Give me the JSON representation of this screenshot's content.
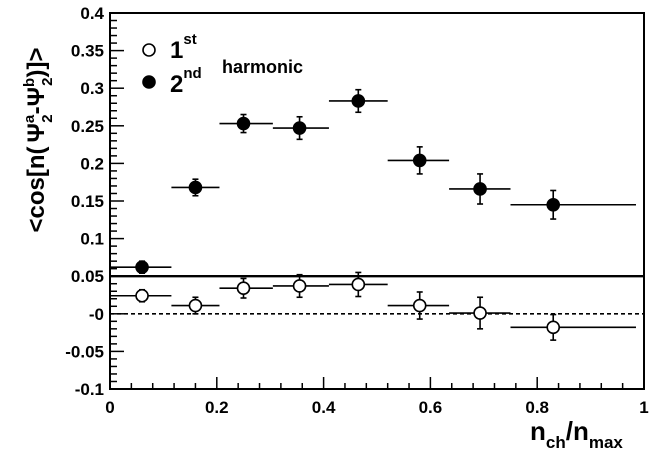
{
  "chart_data": {
    "type": "scatter",
    "xlim": [
      0,
      1.0
    ],
    "ylim": [
      -0.1,
      0.4
    ],
    "x_ticks": [
      0,
      0.2,
      0.4,
      0.6,
      0.8,
      1
    ],
    "x_tick_labels": [
      "0",
      "0.2",
      "0.4",
      "0.6",
      "0.8",
      "1"
    ],
    "y_ticks": [
      -0.1,
      -0.05,
      0,
      0.05,
      0.1,
      0.15,
      0.2,
      0.25,
      0.3,
      0.35,
      0.4
    ],
    "y_tick_labels": [
      "-0.1",
      "-0.05",
      "-0",
      "0.05",
      "0.1",
      "0.15",
      "0.2",
      "0.25",
      "0.3",
      "0.35",
      "0.4"
    ],
    "xlabel": {
      "base": "n",
      "sub": "ch",
      "slash": "/n",
      "sub2": "max"
    },
    "ylabel": {
      "p1": "<cos[n(",
      "psi": "Ψ",
      "sup_a": "a",
      "sub_2a": "2",
      "minus": "-",
      "sup_b": "b",
      "sub_2b": "2",
      "p2": ")]>"
    },
    "legend": {
      "position": "top-left",
      "entries": [
        {
          "ordinal": "1",
          "suffix": "st",
          "marker": "open-circle"
        },
        {
          "ordinal": "2",
          "suffix": "nd",
          "marker": "filled-circle"
        }
      ],
      "label": "harmonic"
    },
    "reference_lines": [
      {
        "y": 0.05,
        "style": "solid"
      },
      {
        "y": 0.0,
        "style": "dashed"
      }
    ],
    "series": [
      {
        "marker": "filled-circle",
        "points": [
          {
            "x": 0.06,
            "y": 0.062,
            "xlo": 0.0,
            "xhi": 0.115,
            "yerr": 0.008
          },
          {
            "x": 0.16,
            "y": 0.168,
            "xlo": 0.115,
            "xhi": 0.205,
            "yerr": 0.011
          },
          {
            "x": 0.25,
            "y": 0.253,
            "xlo": 0.205,
            "xhi": 0.305,
            "yerr": 0.012
          },
          {
            "x": 0.355,
            "y": 0.247,
            "xlo": 0.305,
            "xhi": 0.41,
            "yerr": 0.015
          },
          {
            "x": 0.465,
            "y": 0.283,
            "xlo": 0.41,
            "xhi": 0.52,
            "yerr": 0.015
          },
          {
            "x": 0.58,
            "y": 0.204,
            "xlo": 0.52,
            "xhi": 0.635,
            "yerr": 0.018
          },
          {
            "x": 0.693,
            "y": 0.166,
            "xlo": 0.635,
            "xhi": 0.75,
            "yerr": 0.02
          },
          {
            "x": 0.83,
            "y": 0.145,
            "xlo": 0.75,
            "xhi": 0.985,
            "yerr": 0.019
          }
        ]
      },
      {
        "marker": "open-circle",
        "points": [
          {
            "x": 0.06,
            "y": 0.024,
            "xlo": 0.0,
            "xhi": 0.115,
            "yerr": 0.008
          },
          {
            "x": 0.16,
            "y": 0.011,
            "xlo": 0.115,
            "xhi": 0.205,
            "yerr": 0.011
          },
          {
            "x": 0.25,
            "y": 0.034,
            "xlo": 0.205,
            "xhi": 0.305,
            "yerr": 0.013
          },
          {
            "x": 0.355,
            "y": 0.037,
            "xlo": 0.305,
            "xhi": 0.41,
            "yerr": 0.015
          },
          {
            "x": 0.465,
            "y": 0.039,
            "xlo": 0.41,
            "xhi": 0.52,
            "yerr": 0.016
          },
          {
            "x": 0.58,
            "y": 0.011,
            "xlo": 0.52,
            "xhi": 0.635,
            "yerr": 0.018
          },
          {
            "x": 0.693,
            "y": 0.001,
            "xlo": 0.635,
            "xhi": 0.75,
            "yerr": 0.021
          },
          {
            "x": 0.83,
            "y": -0.018,
            "xlo": 0.75,
            "xhi": 0.985,
            "yerr": 0.017
          }
        ]
      }
    ]
  }
}
